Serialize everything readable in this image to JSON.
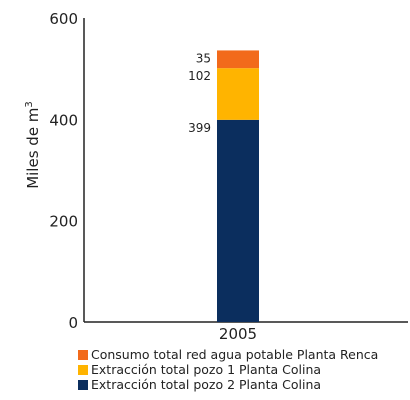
{
  "chart_data": {
    "type": "bar",
    "stacked": true,
    "categories": [
      "2005"
    ],
    "series": [
      {
        "name": "Extracción total pozo 2 Planta Colina",
        "values": [
          399
        ],
        "color": "#0b2e5e"
      },
      {
        "name": "Extracción total pozo 1 Planta Colina",
        "values": [
          102
        ],
        "color": "#ffb400"
      },
      {
        "name": "Consumo total red agua potable Planta Renca",
        "values": [
          35
        ],
        "color": "#f26a1b"
      }
    ],
    "data_labels": [
      "399",
      "102",
      "35"
    ],
    "ylabel": "Miles de m",
    "ylabel_superscript": "3",
    "ylim": [
      0,
      600
    ],
    "yticks": [
      "0",
      "200",
      "400",
      "600"
    ],
    "grid": false,
    "legend_position": "bottom-left"
  },
  "legend": [
    {
      "label": "Consumo total red agua potable Planta Renca",
      "color": "#f26a1b"
    },
    {
      "label": "Extracción total pozo 1 Planta Colina",
      "color": "#ffb400"
    },
    {
      "label": "Extracción total pozo 2 Planta Colina",
      "color": "#0b2e5e"
    }
  ]
}
